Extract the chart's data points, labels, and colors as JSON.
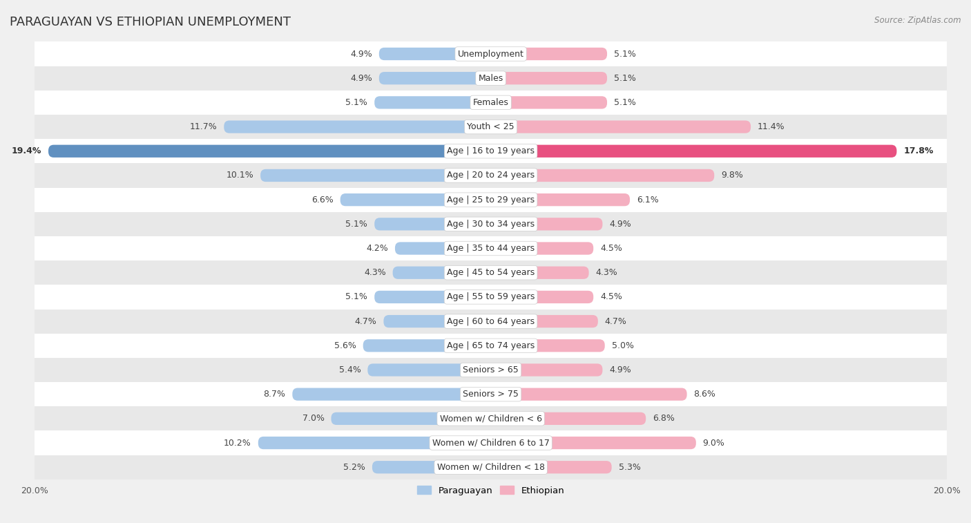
{
  "title": "PARAGUAYAN VS ETHIOPIAN UNEMPLOYMENT",
  "source": "Source: ZipAtlas.com",
  "categories": [
    "Unemployment",
    "Males",
    "Females",
    "Youth < 25",
    "Age | 16 to 19 years",
    "Age | 20 to 24 years",
    "Age | 25 to 29 years",
    "Age | 30 to 34 years",
    "Age | 35 to 44 years",
    "Age | 45 to 54 years",
    "Age | 55 to 59 years",
    "Age | 60 to 64 years",
    "Age | 65 to 74 years",
    "Seniors > 65",
    "Seniors > 75",
    "Women w/ Children < 6",
    "Women w/ Children 6 to 17",
    "Women w/ Children < 18"
  ],
  "paraguayan": [
    4.9,
    4.9,
    5.1,
    11.7,
    19.4,
    10.1,
    6.6,
    5.1,
    4.2,
    4.3,
    5.1,
    4.7,
    5.6,
    5.4,
    8.7,
    7.0,
    10.2,
    5.2
  ],
  "ethiopian": [
    5.1,
    5.1,
    5.1,
    11.4,
    17.8,
    9.8,
    6.1,
    4.9,
    4.5,
    4.3,
    4.5,
    4.7,
    5.0,
    4.9,
    8.6,
    6.8,
    9.0,
    5.3
  ],
  "paraguayan_color_normal": "#a8c8e8",
  "ethiopian_color_normal": "#f4afc0",
  "paraguayan_color_highlight": "#6090c0",
  "ethiopian_color_highlight": "#e85080",
  "background_color": "#f0f0f0",
  "row_bg_white": "#ffffff",
  "row_bg_gray": "#e8e8e8",
  "max_value": 20.0,
  "legend_paraguayan": "Paraguayan",
  "legend_ethiopian": "Ethiopian",
  "label_fontsize": 9,
  "cat_fontsize": 9,
  "title_fontsize": 13,
  "source_fontsize": 8.5
}
